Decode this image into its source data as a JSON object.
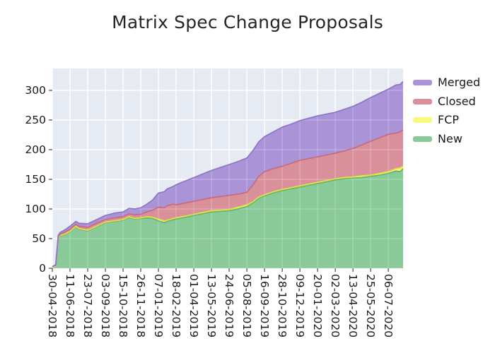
{
  "title": "Matrix Spec Change Proposals",
  "legend": {
    "items": [
      {
        "label": "Merged",
        "color": "#ab93d8"
      },
      {
        "label": "Closed",
        "color": "#d9909b"
      },
      {
        "label": "FCP",
        "color": "#f9f97d"
      },
      {
        "label": "New",
        "color": "#8aca99"
      }
    ]
  },
  "chart_data": {
    "type": "area",
    "stacked": true,
    "title": "Matrix Spec Change Proposals",
    "xlabel": "",
    "ylabel": "",
    "grid": true,
    "legend_position": "right-top-outside",
    "y_ticks": [
      0,
      50,
      100,
      150,
      200,
      250,
      300
    ],
    "ylim": [
      0,
      337
    ],
    "x_tick_labels": [
      "30-04-2018",
      "11-06-2018",
      "23-07-2018",
      "03-09-2018",
      "15-10-2018",
      "26-11-2018",
      "07-01-2019",
      "18-02-2019",
      "01-04-2019",
      "13-05-2019",
      "24-06-2019",
      "05-08-2019",
      "16-09-2019",
      "28-10-2019",
      "09-12-2019",
      "20-01-2020",
      "02-03-2020",
      "13-04-2020",
      "25-05-2020",
      "06-07-2020"
    ],
    "x_tick_interval_days": 42,
    "x_domain_days": 833,
    "series_order_bottom_to_top": [
      "New",
      "FCP",
      "Closed",
      "Merged"
    ],
    "colors": {
      "New": "#8aca99",
      "FCP": "#f9f97d",
      "Closed": "#d9909b",
      "Merged": "#ab93d8"
    },
    "edge_colors": {
      "New": "#5fb574",
      "FCP": "#e3e23e",
      "Closed": "#c76b7b",
      "Merged": "#8d74c9"
    },
    "plot_background": "#e5eaf3",
    "grid_color": "#ffffff",
    "samples": {
      "days": [
        0,
        8,
        14,
        18,
        30,
        42,
        56,
        63,
        84,
        105,
        126,
        147,
        168,
        182,
        196,
        210,
        224,
        238,
        252,
        266,
        273,
        287,
        294,
        315,
        336,
        357,
        378,
        399,
        420,
        441,
        462,
        476,
        490,
        504,
        525,
        546,
        567,
        588,
        609,
        630,
        651,
        672,
        693,
        714,
        735,
        756,
        777,
        798,
        816,
        826,
        833
      ],
      "New": [
        2,
        4,
        50,
        54,
        57,
        61,
        70,
        66,
        63,
        70,
        77,
        79,
        81,
        86,
        83,
        84,
        85,
        84,
        80,
        77,
        79,
        82,
        83,
        86,
        89,
        92,
        95,
        96,
        97,
        100,
        104,
        110,
        118,
        122,
        127,
        131,
        134,
        137,
        140,
        143,
        146,
        149,
        151,
        152,
        153,
        155,
        157,
        160,
        164,
        163,
        168
      ],
      "FCP": [
        0,
        0,
        1,
        1,
        1,
        1,
        1,
        1,
        1,
        1,
        1,
        1,
        1,
        1,
        1,
        1,
        2,
        2,
        3,
        3,
        2,
        2,
        2,
        2,
        2,
        2,
        2,
        2,
        2,
        3,
        3,
        2,
        2,
        2,
        2,
        2,
        2,
        2,
        2,
        2,
        2,
        2,
        2,
        2,
        3,
        2,
        3,
        3,
        4,
        6,
        4
      ],
      "Closed": [
        1,
        1,
        2,
        2,
        3,
        4,
        3,
        4,
        5,
        5,
        4,
        5,
        5,
        5,
        6,
        6,
        8,
        12,
        20,
        22,
        25,
        24,
        22,
        22,
        22,
        22,
        22,
        23,
        24,
        22,
        21,
        28,
        35,
        39,
        39,
        39,
        41,
        43,
        43,
        43,
        43,
        43,
        45,
        48,
        52,
        57,
        60,
        63,
        60,
        61,
        61
      ],
      "Merged": [
        0,
        1,
        2,
        3,
        4,
        5,
        5,
        5,
        6,
        6,
        7,
        8,
        8,
        9,
        10,
        11,
        13,
        17,
        24,
        27,
        28,
        30,
        34,
        37,
        40,
        43,
        46,
        49,
        52,
        55,
        58,
        58,
        58,
        59,
        62,
        66,
        66,
        67,
        68,
        69,
        69,
        69,
        70,
        71,
        72,
        74,
        75,
        76,
        81,
        80,
        82
      ]
    }
  }
}
